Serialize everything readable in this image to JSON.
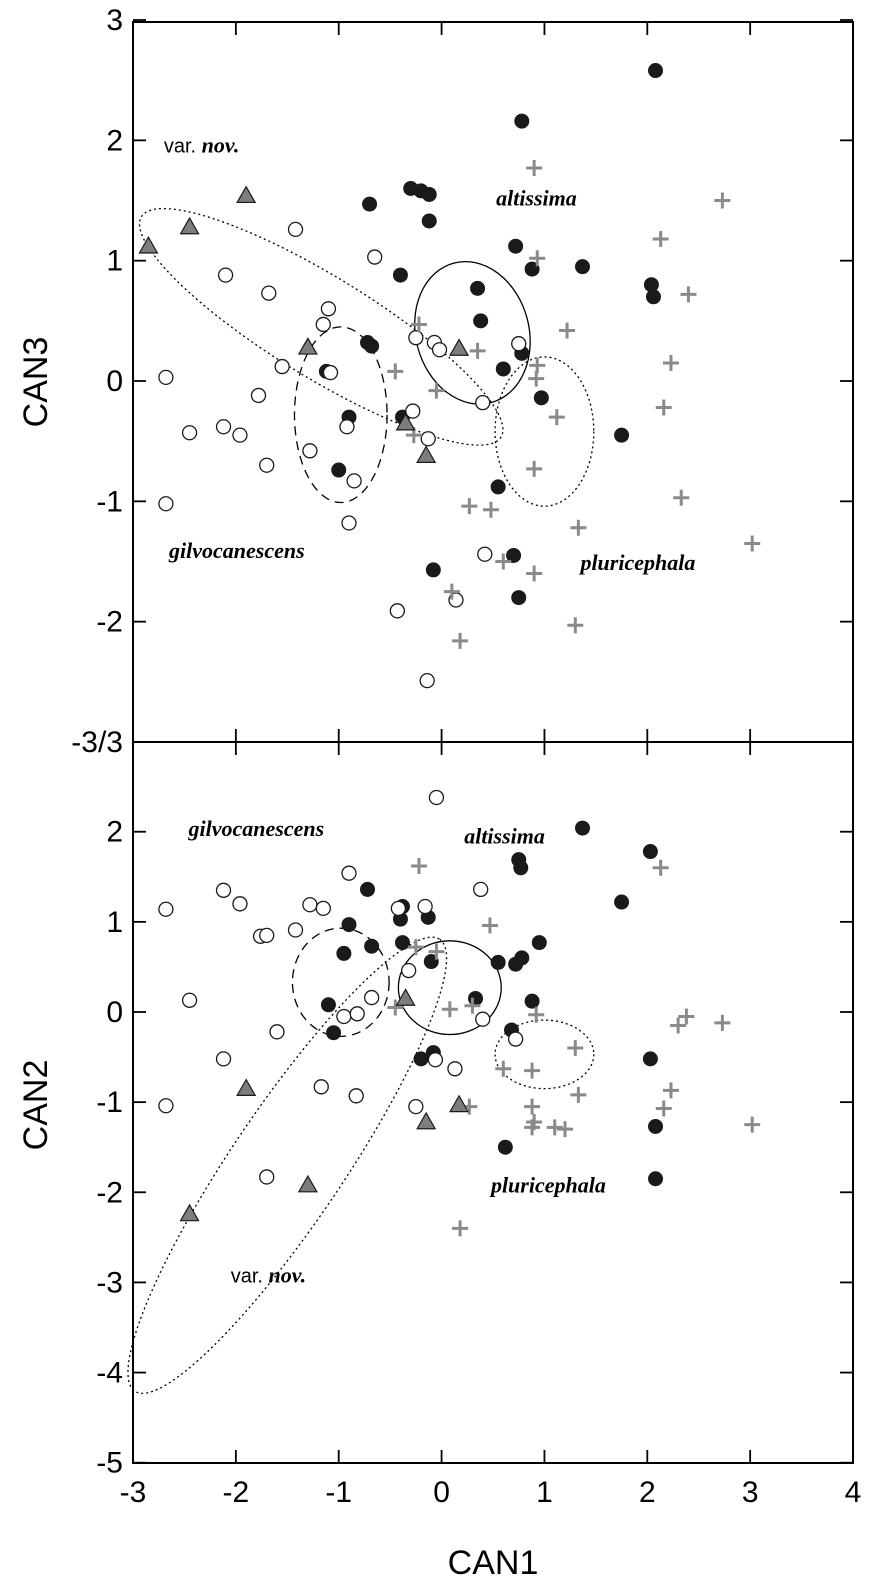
{
  "colors": {
    "altissima": "#1a1a1a",
    "gilvocanescens": "#ffffff",
    "pluricephala": "#8a8a8a",
    "var_nov": "#7d7d7d"
  },
  "chart_data": [
    {
      "type": "scatter",
      "panel": "top",
      "xlabel": "CAN1",
      "ylabel": "CAN3",
      "xlim": [
        -3,
        4
      ],
      "ylim": [
        -3,
        3
      ],
      "xticks": [
        -3,
        -2,
        -1,
        0,
        1,
        2,
        3,
        4
      ],
      "yticks": [
        -3,
        -2,
        -1,
        0,
        1,
        2,
        3
      ],
      "ytick_labels": [
        "-3/3",
        "-2",
        "-1",
        "0",
        "1",
        "2",
        "3"
      ],
      "labels": {
        "altissima": "altissima",
        "gilvocanescens": "gilvocanescens",
        "pluricephala": "pluricephala",
        "var_prefix": "var.",
        "var_name": "nov."
      },
      "series": [
        {
          "key": "altissima",
          "marker": "filled-circle",
          "points": [
            [
              2.08,
              2.58
            ],
            [
              0.78,
              2.16
            ],
            [
              -0.3,
              1.6
            ],
            [
              -0.2,
              1.58
            ],
            [
              -0.12,
              1.55
            ],
            [
              -0.7,
              1.47
            ],
            [
              -0.12,
              1.33
            ],
            [
              0.72,
              1.12
            ],
            [
              0.88,
              0.93
            ],
            [
              1.37,
              0.95
            ],
            [
              -0.4,
              0.88
            ],
            [
              2.04,
              0.8
            ],
            [
              2.06,
              0.7
            ],
            [
              0.35,
              0.77
            ],
            [
              0.38,
              0.5
            ],
            [
              -0.72,
              0.32
            ],
            [
              -0.68,
              0.29
            ],
            [
              -1.12,
              0.08
            ],
            [
              0.78,
              0.23
            ],
            [
              0.6,
              0.1
            ],
            [
              0.97,
              -0.14
            ],
            [
              -0.9,
              -0.3
            ],
            [
              -0.38,
              -0.3
            ],
            [
              -1.0,
              -0.74
            ],
            [
              1.75,
              -0.45
            ],
            [
              0.55,
              -0.88
            ],
            [
              0.7,
              -1.45
            ],
            [
              -0.08,
              -1.57
            ],
            [
              0.75,
              -1.8
            ]
          ]
        },
        {
          "key": "gilvocanescens",
          "marker": "open-circle",
          "points": [
            [
              -1.42,
              1.26
            ],
            [
              -0.65,
              1.03
            ],
            [
              -2.1,
              0.88
            ],
            [
              -1.68,
              0.73
            ],
            [
              -1.1,
              0.6
            ],
            [
              -1.15,
              0.47
            ],
            [
              -0.25,
              0.36
            ],
            [
              -0.07,
              0.32
            ],
            [
              -0.02,
              0.26
            ],
            [
              0.75,
              0.31
            ],
            [
              -1.55,
              0.12
            ],
            [
              -2.68,
              0.03
            ],
            [
              -1.08,
              0.07
            ],
            [
              -1.78,
              -0.12
            ],
            [
              -2.45,
              -0.43
            ],
            [
              -2.12,
              -0.38
            ],
            [
              -1.96,
              -0.45
            ],
            [
              0.4,
              -0.18
            ],
            [
              -0.28,
              -0.25
            ],
            [
              -0.92,
              -0.38
            ],
            [
              -1.28,
              -0.58
            ],
            [
              -0.13,
              -0.48
            ],
            [
              -1.7,
              -0.7
            ],
            [
              -2.68,
              -1.02
            ],
            [
              -0.85,
              -0.83
            ],
            [
              -0.9,
              -1.18
            ],
            [
              0.42,
              -1.44
            ],
            [
              -0.43,
              -1.91
            ],
            [
              0.14,
              -1.82
            ],
            [
              -0.14,
              -2.49
            ]
          ]
        },
        {
          "key": "pluricephala",
          "marker": "plus",
          "points": [
            [
              0.9,
              1.77
            ],
            [
              2.73,
              1.5
            ],
            [
              2.13,
              1.18
            ],
            [
              0.93,
              1.02
            ],
            [
              2.4,
              0.72
            ],
            [
              -0.22,
              0.47
            ],
            [
              1.22,
              0.42
            ],
            [
              0.35,
              0.25
            ],
            [
              2.23,
              0.15
            ],
            [
              0.93,
              0.13
            ],
            [
              -0.45,
              0.08
            ],
            [
              0.92,
              0.02
            ],
            [
              -0.05,
              -0.08
            ],
            [
              2.16,
              -0.22
            ],
            [
              1.12,
              -0.3
            ],
            [
              -0.27,
              -0.45
            ],
            [
              0.9,
              -0.73
            ],
            [
              2.33,
              -0.97
            ],
            [
              0.27,
              -1.04
            ],
            [
              0.48,
              -1.07
            ],
            [
              1.33,
              -1.22
            ],
            [
              3.02,
              -1.35
            ],
            [
              0.6,
              -1.5
            ],
            [
              0.9,
              -1.6
            ],
            [
              0.1,
              -1.75
            ],
            [
              1.3,
              -2.03
            ],
            [
              0.18,
              -2.16
            ]
          ]
        },
        {
          "key": "var_nov",
          "marker": "triangle",
          "points": [
            [
              -1.9,
              1.54
            ],
            [
              -2.45,
              1.28
            ],
            [
              -2.85,
              1.12
            ],
            [
              -1.3,
              0.28
            ],
            [
              0.17,
              0.27
            ],
            [
              -0.35,
              -0.35
            ],
            [
              -0.15,
              -0.62
            ]
          ]
        }
      ]
    },
    {
      "type": "scatter",
      "panel": "bottom",
      "xlabel": "CAN1",
      "ylabel": "CAN2",
      "xlim": [
        -3,
        4
      ],
      "ylim": [
        -5,
        3
      ],
      "xticks": [
        -3,
        -2,
        -1,
        0,
        1,
        2,
        3,
        4
      ],
      "yticks": [
        -5,
        -4,
        -3,
        -2,
        -1,
        0,
        1,
        2
      ],
      "ytick_labels": [
        "-5",
        "-4",
        "-3",
        "-2",
        "-1",
        "0",
        "1",
        "2"
      ],
      "labels": {
        "altissima": "altissima",
        "gilvocanescens": "gilvocanescens",
        "pluricephala": "pluricephala",
        "var_prefix": "var.",
        "var_name": "nov."
      },
      "series": [
        {
          "key": "altissima",
          "marker": "filled-circle",
          "points": [
            [
              1.37,
              2.04
            ],
            [
              2.03,
              1.78
            ],
            [
              0.75,
              1.69
            ],
            [
              0.77,
              1.6
            ],
            [
              -0.72,
              1.36
            ],
            [
              1.75,
              1.22
            ],
            [
              -0.38,
              1.17
            ],
            [
              -0.4,
              1.03
            ],
            [
              -0.13,
              1.05
            ],
            [
              -0.9,
              0.97
            ],
            [
              0.95,
              0.77
            ],
            [
              -0.95,
              0.65
            ],
            [
              -0.68,
              0.73
            ],
            [
              -0.38,
              0.77
            ],
            [
              -0.1,
              0.56
            ],
            [
              0.55,
              0.55
            ],
            [
              0.72,
              0.53
            ],
            [
              0.78,
              0.6
            ],
            [
              -1.1,
              0.08
            ],
            [
              0.33,
              0.15
            ],
            [
              0.88,
              0.12
            ],
            [
              -1.05,
              -0.23
            ],
            [
              0.68,
              -0.2
            ],
            [
              -0.2,
              -0.52
            ],
            [
              -0.08,
              -0.45
            ],
            [
              2.03,
              -0.52
            ],
            [
              2.08,
              -1.27
            ],
            [
              0.62,
              -1.5
            ],
            [
              2.08,
              -1.85
            ]
          ]
        },
        {
          "key": "gilvocanescens",
          "marker": "open-circle",
          "points": [
            [
              -0.05,
              2.38
            ],
            [
              -0.9,
              1.54
            ],
            [
              -2.12,
              1.35
            ],
            [
              -1.96,
              1.2
            ],
            [
              -1.28,
              1.19
            ],
            [
              -1.15,
              1.15
            ],
            [
              -2.68,
              1.14
            ],
            [
              0.38,
              1.36
            ],
            [
              -0.42,
              1.15
            ],
            [
              -0.16,
              1.17
            ],
            [
              -1.42,
              0.91
            ],
            [
              -1.76,
              0.84
            ],
            [
              -1.7,
              0.85
            ],
            [
              -0.32,
              0.46
            ],
            [
              -0.68,
              0.16
            ],
            [
              -2.45,
              0.13
            ],
            [
              -0.95,
              -0.05
            ],
            [
              -0.82,
              -0.02
            ],
            [
              0.4,
              -0.08
            ],
            [
              -1.6,
              -0.22
            ],
            [
              0.72,
              -0.3
            ],
            [
              -2.12,
              -0.52
            ],
            [
              -0.06,
              -0.53
            ],
            [
              0.13,
              -0.63
            ],
            [
              -1.17,
              -0.83
            ],
            [
              -0.83,
              -0.93
            ],
            [
              -0.25,
              -1.05
            ],
            [
              -2.68,
              -1.04
            ],
            [
              -1.7,
              -1.83
            ]
          ]
        },
        {
          "key": "pluricephala",
          "marker": "plus",
          "points": [
            [
              -0.22,
              1.62
            ],
            [
              2.13,
              1.6
            ],
            [
              0.47,
              0.96
            ],
            [
              -0.25,
              0.72
            ],
            [
              -0.05,
              0.67
            ],
            [
              -0.45,
              0.05
            ],
            [
              0.08,
              0.03
            ],
            [
              0.3,
              0.07
            ],
            [
              0.92,
              -0.03
            ],
            [
              2.38,
              -0.05
            ],
            [
              2.73,
              -0.12
            ],
            [
              2.3,
              -0.15
            ],
            [
              1.3,
              -0.4
            ],
            [
              0.6,
              -0.63
            ],
            [
              0.88,
              -0.65
            ],
            [
              2.23,
              -0.87
            ],
            [
              1.33,
              -0.92
            ],
            [
              0.27,
              -1.05
            ],
            [
              2.16,
              -1.07
            ],
            [
              0.88,
              -1.05
            ],
            [
              0.9,
              -1.22
            ],
            [
              0.88,
              -1.28
            ],
            [
              1.1,
              -1.28
            ],
            [
              1.2,
              -1.3
            ],
            [
              3.02,
              -1.25
            ],
            [
              0.18,
              -2.4
            ]
          ]
        },
        {
          "key": "var_nov",
          "marker": "triangle",
          "points": [
            [
              -0.35,
              0.15
            ],
            [
              -1.9,
              -0.85
            ],
            [
              0.17,
              -1.03
            ],
            [
              -0.15,
              -1.22
            ],
            [
              -1.3,
              -1.92
            ],
            [
              -2.45,
              -2.24
            ]
          ]
        }
      ]
    }
  ]
}
